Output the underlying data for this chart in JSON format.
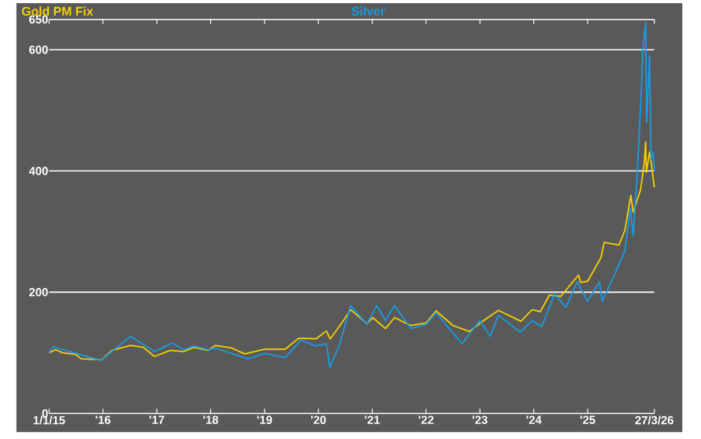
{
  "chart_data": {
    "type": "line",
    "xlim": [
      "2015-01-01",
      "2026-03-27"
    ],
    "ylim": [
      0,
      650
    ],
    "xticks": [
      {
        "value": "2015-01-01",
        "label": "1/1/15"
      },
      {
        "value": "2016-01-01",
        "label": "'16"
      },
      {
        "value": "2017-01-01",
        "label": "'17"
      },
      {
        "value": "2018-01-01",
        "label": "'18"
      },
      {
        "value": "2019-01-01",
        "label": "'19"
      },
      {
        "value": "2020-01-01",
        "label": "'20"
      },
      {
        "value": "2021-01-01",
        "label": "'21"
      },
      {
        "value": "2022-01-01",
        "label": "'22"
      },
      {
        "value": "2023-01-01",
        "label": "'23"
      },
      {
        "value": "2024-01-01",
        "label": "'24"
      },
      {
        "value": "2025-01-01",
        "label": "'25"
      },
      {
        "value": "2026-03-27",
        "label": "27/3/26"
      }
    ],
    "yticks": [
      0,
      200,
      400,
      600,
      650
    ],
    "grid": "y",
    "legend": "top",
    "marker": "none",
    "line_style": "solid",
    "series": [
      {
        "name": "Gold PM Fix",
        "color": "#f5d000",
        "x": [
          "2015-01-01",
          "2015-02-15",
          "2015-04-01",
          "2015-07-01",
          "2015-08-05",
          "2015-11-25",
          "2015-12-20",
          "2016-03-01",
          "2016-07-05",
          "2016-10-01",
          "2016-12-15",
          "2017-04-01",
          "2017-07-01",
          "2017-09-10",
          "2017-12-15",
          "2018-02-01",
          "2018-05-20",
          "2018-08-20",
          "2019-01-01",
          "2019-05-20",
          "2019-08-20",
          "2019-12-15",
          "2020-02-25",
          "2020-03-20",
          "2020-05-20",
          "2020-08-07",
          "2020-11-25",
          "2021-01-05",
          "2021-03-30",
          "2021-05-30",
          "2021-09-20",
          "2022-01-01",
          "2022-03-08",
          "2022-07-01",
          "2022-10-20",
          "2023-01-20",
          "2023-05-05",
          "2023-10-05",
          "2023-12-20",
          "2024-02-15",
          "2024-04-15",
          "2024-07-01",
          "2024-10-30",
          "2024-11-15",
          "2025-01-01",
          "2025-03-30",
          "2025-04-22",
          "2025-08-01",
          "2025-09-10",
          "2025-10-20",
          "2025-11-05",
          "2025-12-25",
          "2026-01-20",
          "2026-01-29",
          "2026-02-03",
          "2026-02-25",
          "2026-03-10",
          "2026-03-27"
        ],
        "values": [
          100,
          105,
          100,
          97,
          90,
          89,
          88,
          104,
          112,
          109,
          94,
          104,
          102,
          109,
          104,
          112,
          108,
          98,
          106,
          106,
          124,
          123,
          136,
          123,
          143,
          171,
          148,
          158,
          140,
          158,
          145,
          149,
          169,
          145,
          135,
          152,
          170,
          152,
          171,
          168,
          195,
          193,
          228,
          216,
          218,
          257,
          282,
          278,
          302,
          360,
          332,
          369,
          414,
          448,
          398,
          431,
          406,
          373
        ]
      },
      {
        "name": "Silver",
        "color": "#1a9be2",
        "x": [
          "2015-01-01",
          "2015-01-25",
          "2015-07-01",
          "2015-11-25",
          "2015-12-20",
          "2016-07-05",
          "2016-12-15",
          "2017-04-15",
          "2017-07-01",
          "2017-09-10",
          "2017-12-15",
          "2018-02-01",
          "2018-09-10",
          "2019-01-01",
          "2019-05-20",
          "2019-09-05",
          "2019-12-15",
          "2020-02-25",
          "2020-03-18",
          "2020-05-20",
          "2020-08-07",
          "2020-11-25",
          "2021-02-01",
          "2021-03-30",
          "2021-05-30",
          "2021-09-20",
          "2022-01-01",
          "2022-03-08",
          "2022-09-01",
          "2023-01-01",
          "2023-03-10",
          "2023-05-05",
          "2023-10-01",
          "2023-12-20",
          "2024-02-25",
          "2024-05-20",
          "2024-08-05",
          "2024-10-22",
          "2024-12-30",
          "2025-03-20",
          "2025-04-08",
          "2025-07-01",
          "2025-09-10",
          "2025-10-16",
          "2025-11-05",
          "2025-12-01",
          "2025-12-28",
          "2026-01-10",
          "2026-01-29",
          "2026-02-05",
          "2026-02-25",
          "2026-03-05",
          "2026-03-20",
          "2026-03-27"
        ],
        "values": [
          100,
          110,
          99,
          89,
          88,
          127,
          102,
          116,
          105,
          111,
          105,
          108,
          90,
          99,
          92,
          121,
          111,
          115,
          76,
          111,
          178,
          147,
          178,
          153,
          178,
          140,
          147,
          166,
          115,
          153,
          127,
          162,
          134,
          153,
          143,
          197,
          175,
          217,
          185,
          217,
          185,
          229,
          268,
          338,
          293,
          390,
          520,
          600,
          645,
          480,
          590,
          420,
          430,
          400
        ]
      }
    ]
  }
}
